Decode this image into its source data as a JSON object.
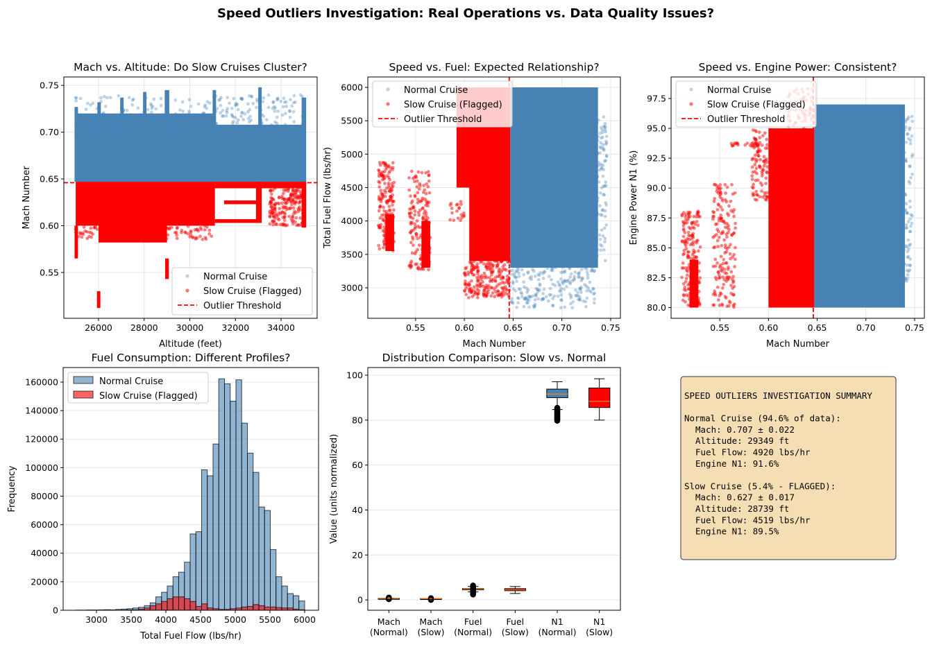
{
  "figure": {
    "title": "Speed Outliers Investigation: Real Operations vs. Data Quality Issues?"
  },
  "colors": {
    "normal": "#4682b4",
    "slow": "#ff0000",
    "threshold": "#ff0000",
    "median": "#ff7f0e",
    "summary_bg": "#f5deb3"
  },
  "chart_data": [
    {
      "type": "scatter",
      "title": "Mach vs. Altitude: Do Slow Cruises Cluster?",
      "xlabel": "Altitude (feet)",
      "ylabel": "Mach Number",
      "xlim": [
        24480,
        35580
      ],
      "ylim": [
        0.501,
        0.759
      ],
      "xticks": [
        "26000",
        "28000",
        "30000",
        "32000",
        "34000"
      ],
      "yticks": [
        "0.55",
        "0.60",
        "0.65",
        "0.70",
        "0.75"
      ],
      "grid": "both",
      "legend": {
        "position": "lower-right"
      },
      "threshold": {
        "value": 0.646,
        "orientation": "horizontal",
        "label": "Outlier Threshold"
      },
      "series": [
        {
          "name": "Normal Cruise",
          "color": "#4682b4",
          "regions": [
            {
              "x": [
                25000,
                31100
              ],
              "y": [
                0.647,
                0.72
              ],
              "fill": "dense"
            },
            {
              "x": [
                31100,
                35000
              ],
              "y": [
                0.647,
                0.708
              ],
              "fill": "dense"
            },
            {
              "x": [
                24950,
                25100
              ],
              "y": [
                0.647,
                0.727
              ],
              "fill": "dense"
            },
            {
              "x": [
                25950,
                26100
              ],
              "y": [
                0.647,
                0.732
              ],
              "fill": "dense"
            },
            {
              "x": [
                26950,
                27100
              ],
              "y": [
                0.647,
                0.737
              ],
              "fill": "dense"
            },
            {
              "x": [
                27950,
                28100
              ],
              "y": [
                0.647,
                0.743
              ],
              "fill": "dense"
            },
            {
              "x": [
                28900,
                29100
              ],
              "y": [
                0.647,
                0.745
              ],
              "fill": "dense"
            },
            {
              "x": [
                31000,
                31150
              ],
              "y": [
                0.647,
                0.745
              ],
              "fill": "dense"
            },
            {
              "x": [
                33000,
                33150
              ],
              "y": [
                0.647,
                0.748
              ],
              "fill": "dense"
            },
            {
              "x": [
                34900,
                35100
              ],
              "y": [
                0.647,
                0.737
              ],
              "fill": "dense"
            },
            {
              "x": [
                25000,
                35000
              ],
              "y": [
                0.7,
                0.74
              ],
              "points": 260
            }
          ]
        },
        {
          "name": "Slow Cruise (Flagged)",
          "color": "#ff0000",
          "regions": [
            {
              "x": [
                25000,
                31100
              ],
              "y": [
                0.6,
                0.647
              ],
              "fill": "dense"
            },
            {
              "x": [
                31100,
                35000
              ],
              "y": [
                0.64,
                0.647
              ],
              "fill": "dense"
            },
            {
              "x": [
                31100,
                33100
              ],
              "y": [
                0.603,
                0.607
              ],
              "fill": "dense"
            },
            {
              "x": [
                31500,
                33100
              ],
              "y": [
                0.623,
                0.627
              ],
              "fill": "dense"
            },
            {
              "x": [
                32900,
                33150
              ],
              "y": [
                0.603,
                0.647
              ],
              "fill": "dense"
            },
            {
              "x": [
                34900,
                35100
              ],
              "y": [
                0.598,
                0.647
              ],
              "fill": "dense"
            },
            {
              "x": [
                33500,
                35000
              ],
              "y": [
                0.6,
                0.645
              ],
              "points": 200
            },
            {
              "x": [
                26000,
                29000
              ],
              "y": [
                0.582,
                0.6
              ],
              "fill": "dense"
            },
            {
              "x": [
                24950,
                25100
              ],
              "y": [
                0.565,
                0.6
              ],
              "fill": "dense"
            },
            {
              "x": [
                25930,
                26080
              ],
              "y": [
                0.512,
                0.53
              ],
              "fill": "dense"
            },
            {
              "x": [
                28920,
                29080
              ],
              "y": [
                0.543,
                0.565
              ],
              "fill": "dense"
            },
            {
              "x": [
                25000,
                31000
              ],
              "y": [
                0.585,
                0.6
              ],
              "points": 120
            }
          ]
        }
      ]
    },
    {
      "type": "scatter",
      "title": "Speed vs. Fuel: Expected Relationship?",
      "xlabel": "Mach Number",
      "ylabel": "Total Fuel Flow (lbs/hr)",
      "xlim": [
        0.501,
        0.76
      ],
      "ylim": [
        2543,
        6156
      ],
      "xticks": [
        "0.55",
        "0.60",
        "0.65",
        "0.70",
        "0.75"
      ],
      "yticks": [
        "3000",
        "3500",
        "4000",
        "4500",
        "5000",
        "5500",
        "6000"
      ],
      "grid": "both",
      "legend": {
        "position": "upper-left"
      },
      "threshold": {
        "value": 0.646,
        "orientation": "vertical",
        "label": "Outlier Threshold"
      },
      "series": [
        {
          "name": "Normal Cruise",
          "color": "#4682b4",
          "regions": [
            {
              "x": [
                0.647,
                0.737
              ],
              "y": [
                3300,
                6000
              ],
              "fill": "dense"
            },
            {
              "x": [
                0.647,
                0.735
              ],
              "y": [
                2700,
                3350
              ],
              "points": 220
            },
            {
              "x": [
                0.735,
                0.746
              ],
              "y": [
                3400,
                5600
              ],
              "points": 90
            }
          ]
        },
        {
          "name": "Slow Cruise (Flagged)",
          "color": "#ff0000",
          "regions": [
            {
              "x": [
                0.605,
                0.647
              ],
              "y": [
                3400,
                6000
              ],
              "fill": "dense"
            },
            {
              "x": [
                0.592,
                0.606
              ],
              "y": [
                4500,
                6000
              ],
              "fill": "dense"
            },
            {
              "x": [
                0.6,
                0.647
              ],
              "y": [
                2850,
                3450
              ],
              "points": 220
            },
            {
              "x": [
                0.512,
                0.528
              ],
              "y": [
                3550,
                4880
              ],
              "points": 160
            },
            {
              "x": [
                0.519,
                0.528
              ],
              "y": [
                3550,
                4100
              ],
              "fill": "dense"
            },
            {
              "x": [
                0.543,
                0.565
              ],
              "y": [
                3270,
                4750
              ],
              "points": 160
            },
            {
              "x": [
                0.556,
                0.565
              ],
              "y": [
                3300,
                4000
              ],
              "fill": "dense"
            },
            {
              "x": [
                0.585,
                0.6
              ],
              "y": [
                4000,
                4300
              ],
              "points": 20
            }
          ]
        }
      ]
    },
    {
      "type": "scatter",
      "title": "Speed vs. Engine Power: Consistent?",
      "xlabel": "Mach Number",
      "ylabel": "Engine Power N1 (%)",
      "xlim": [
        0.5,
        0.76
      ],
      "ylim": [
        79.1,
        99.3
      ],
      "xticks": [
        "0.55",
        "0.60",
        "0.65",
        "0.70",
        "0.75"
      ],
      "yticks": [
        "80.0",
        "82.5",
        "85.0",
        "87.5",
        "90.0",
        "92.5",
        "95.0",
        "97.5"
      ],
      "grid": "both",
      "legend": {
        "position": "upper-left"
      },
      "threshold": {
        "value": 0.646,
        "orientation": "vertical",
        "label": "Outlier Threshold"
      },
      "series": [
        {
          "name": "Normal Cruise",
          "color": "#4682b4",
          "regions": [
            {
              "x": [
                0.647,
                0.74
              ],
              "y": [
                80,
                97
              ],
              "fill": "dense"
            },
            {
              "x": [
                0.738,
                0.748
              ],
              "y": [
                82,
                96.3
              ],
              "points": 80
            }
          ]
        },
        {
          "name": "Slow Cruise (Flagged)",
          "color": "#ff0000",
          "regions": [
            {
              "x": [
                0.6,
                0.647
              ],
              "y": [
                80,
                95
              ],
              "fill": "dense"
            },
            {
              "x": [
                0.583,
                0.6
              ],
              "y": [
                89,
                95
              ],
              "points": 90
            },
            {
              "x": [
                0.56,
                0.59
              ],
              "y": [
                93.5,
                93.8
              ],
              "points": 25
            },
            {
              "x": [
                0.62,
                0.647
              ],
              "y": [
                95,
                98.3
              ],
              "points": 60
            },
            {
              "x": [
                0.511,
                0.53
              ],
              "y": [
                80,
                88.1
              ],
              "points": 170
            },
            {
              "x": [
                0.519,
                0.528
              ],
              "y": [
                80,
                84
              ],
              "fill": "dense"
            },
            {
              "x": [
                0.543,
                0.566
              ],
              "y": [
                80,
                90.3
              ],
              "points": 170
            }
          ]
        }
      ]
    },
    {
      "type": "bar",
      "title": "Fuel Consumption: Different Profiles?",
      "xlabel": "Total Fuel Flow (lbs/hr)",
      "ylabel": "Frequency",
      "xlim": [
        2520,
        6200
      ],
      "ylim": [
        0,
        170200
      ],
      "xticks": [
        "3000",
        "3500",
        "4000",
        "4500",
        "5000",
        "5500",
        "6000"
      ],
      "yticks": [
        "0",
        "20000",
        "40000",
        "60000",
        "80000",
        "100000",
        "120000",
        "140000",
        "160000"
      ],
      "grid": "y",
      "legend": {
        "position": "upper-left"
      },
      "bin_start": 2700,
      "bin_width": 82.5,
      "series": [
        {
          "name": "Normal Cruise",
          "color": "#4682b4",
          "values": [
            100,
            100,
            200,
            200,
            300,
            400,
            300,
            600,
            800,
            1100,
            1600,
            2100,
            3200,
            5200,
            9400,
            12600,
            17000,
            23500,
            26700,
            33700,
            53500,
            55100,
            98500,
            94300,
            116600,
            162300,
            158800,
            146600,
            161600,
            131200,
            110200,
            96700,
            72400,
            70000,
            42600,
            23500,
            17000,
            11700,
            10200,
            6500
          ]
        },
        {
          "name": "Slow Cruise (Flagged)",
          "color": "#ff0000",
          "values": [
            0,
            0,
            0,
            0,
            0,
            0,
            0,
            0,
            100,
            200,
            300,
            800,
            1600,
            3200,
            4500,
            6200,
            8100,
            9400,
            9400,
            8100,
            6200,
            2700,
            4500,
            1600,
            1100,
            600,
            600,
            1100,
            1600,
            2300,
            2700,
            4000,
            3200,
            2300,
            2300,
            1900,
            1600,
            1600,
            800,
            300
          ]
        }
      ]
    },
    {
      "type": "box",
      "title": "Distribution Comparison: Slow vs. Normal",
      "xlabel": "",
      "ylabel": "Value (units normalized)",
      "xlim": [
        0.5,
        6.5
      ],
      "ylim": [
        -4.6,
        103.4
      ],
      "yticks": [
        "0",
        "20",
        "40",
        "60",
        "80",
        "100"
      ],
      "grid": "y",
      "boxes": [
        {
          "label": [
            "Mach",
            "(Normal)"
          ],
          "color": "#4682b4",
          "q1": 0.69,
          "median": 0.707,
          "q3": 0.72,
          "whislo": 0.647,
          "whishi": 0.75,
          "fliers": [
            0.3,
            1.2
          ]
        },
        {
          "label": [
            "Mach",
            "(Slow)"
          ],
          "color": "#ff0000",
          "q1": 0.615,
          "median": 0.63,
          "q3": 0.64,
          "whislo": 0.58,
          "whishi": 0.647,
          "fliers": [
            0.0,
            0.9
          ]
        },
        {
          "label": [
            "Fuel",
            "(Normal)"
          ],
          "color": "#4682b4",
          "q1": 4.5,
          "median": 4.92,
          "q3": 5.1,
          "whislo": 3.6,
          "whishi": 6.0,
          "fliers": [
            2.4,
            6.4
          ]
        },
        {
          "label": [
            "Fuel",
            "(Slow)"
          ],
          "color": "#ff0000",
          "q1": 4.1,
          "median": 4.45,
          "q3": 5.0,
          "whislo": 2.85,
          "whishi": 5.95,
          "fliers": null
        },
        {
          "label": [
            "N1",
            "(Normal)"
          ],
          "color": "#4682b4",
          "q1": 90.0,
          "median": 91.6,
          "q3": 93.8,
          "whislo": 84.7,
          "whishi": 97.1,
          "fliers": [
            79.7,
            85.5
          ]
        },
        {
          "label": [
            "N1",
            "(Slow)"
          ],
          "color": "#ff0000",
          "q1": 85.6,
          "median": 88.4,
          "q3": 94.3,
          "whislo": 80.0,
          "whishi": 98.4,
          "fliers": null
        }
      ]
    }
  ],
  "summary": {
    "title": "SPEED OUTLIERS INVESTIGATION SUMMARY",
    "sections": [
      {
        "header": "Normal Cruise (94.6% of data):",
        "lines": [
          "Mach: 0.707 ± 0.022",
          "Altitude: 29349 ft",
          "Fuel Flow: 4920 lbs/hr",
          "Engine N1: 91.6%"
        ]
      },
      {
        "header": "Slow Cruise (5.4% - FLAGGED):",
        "lines": [
          "Mach: 0.627 ± 0.017",
          "Altitude: 28739 ft",
          "Fuel Flow: 4519 lbs/hr",
          "Engine N1: 89.5%"
        ]
      }
    ]
  }
}
